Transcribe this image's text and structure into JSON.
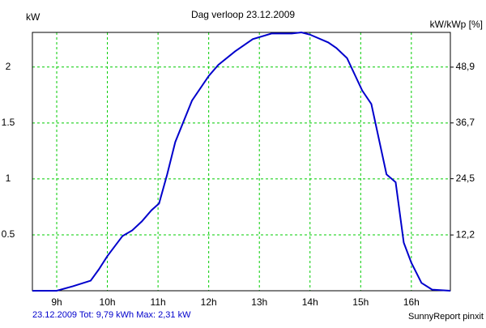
{
  "chart_data": {
    "type": "line",
    "title": "Dag  verloop 23.12.2009",
    "y_label": "kW",
    "y2_label": "kW/kWp [%]",
    "footer_left": "23.12.2009 Tot: 9,79 kWh Max: 2,31 kW",
    "footer_right": "SunnyReport pinxit",
    "x": [
      8.52,
      9.0,
      9.32,
      9.67,
      9.83,
      10.0,
      10.3,
      10.49,
      10.68,
      10.87,
      11.02,
      11.18,
      11.34,
      11.67,
      12.0,
      12.19,
      12.52,
      12.87,
      13.24,
      13.64,
      13.83,
      14.0,
      14.36,
      14.52,
      14.73,
      15.03,
      15.21,
      15.51,
      15.69,
      15.85,
      16.0,
      16.2,
      16.41,
      16.77
    ],
    "series": [
      {
        "color": "#0000cc",
        "values": [
          0,
          0,
          0.04,
          0.09,
          0.19,
          0.31,
          0.49,
          0.54,
          0.62,
          0.72,
          0.78,
          1.04,
          1.33,
          1.7,
          1.92,
          2.02,
          2.14,
          2.25,
          2.3,
          2.3,
          2.31,
          2.29,
          2.22,
          2.17,
          2.08,
          1.79,
          1.67,
          1.04,
          0.97,
          0.43,
          0.25,
          0.07,
          0.01,
          0
        ]
      }
    ],
    "xlim": [
      8.52,
      16.77
    ],
    "xticks": [
      {
        "value": 9,
        "label": "9h"
      },
      {
        "value": 10,
        "label": "10h"
      },
      {
        "value": 11,
        "label": "11h"
      },
      {
        "value": 12,
        "label": "12h"
      },
      {
        "value": 13,
        "label": "13h"
      },
      {
        "value": 14,
        "label": "14h"
      },
      {
        "value": 15,
        "label": "15h"
      },
      {
        "value": 16,
        "label": "16h"
      }
    ],
    "ylim": [
      0,
      2.31
    ],
    "yticks": [
      0.5,
      1,
      1.5,
      2
    ],
    "y2lim": [
      0,
      56.5
    ],
    "y2ticks": [
      {
        "value": 12.2,
        "label": "12,2"
      },
      {
        "value": 24.5,
        "label": "24,5"
      },
      {
        "value": 36.7,
        "label": "36,7"
      },
      {
        "value": 48.9,
        "label": "48,9"
      }
    ],
    "grid": true,
    "grid_color": "#00cc00"
  }
}
